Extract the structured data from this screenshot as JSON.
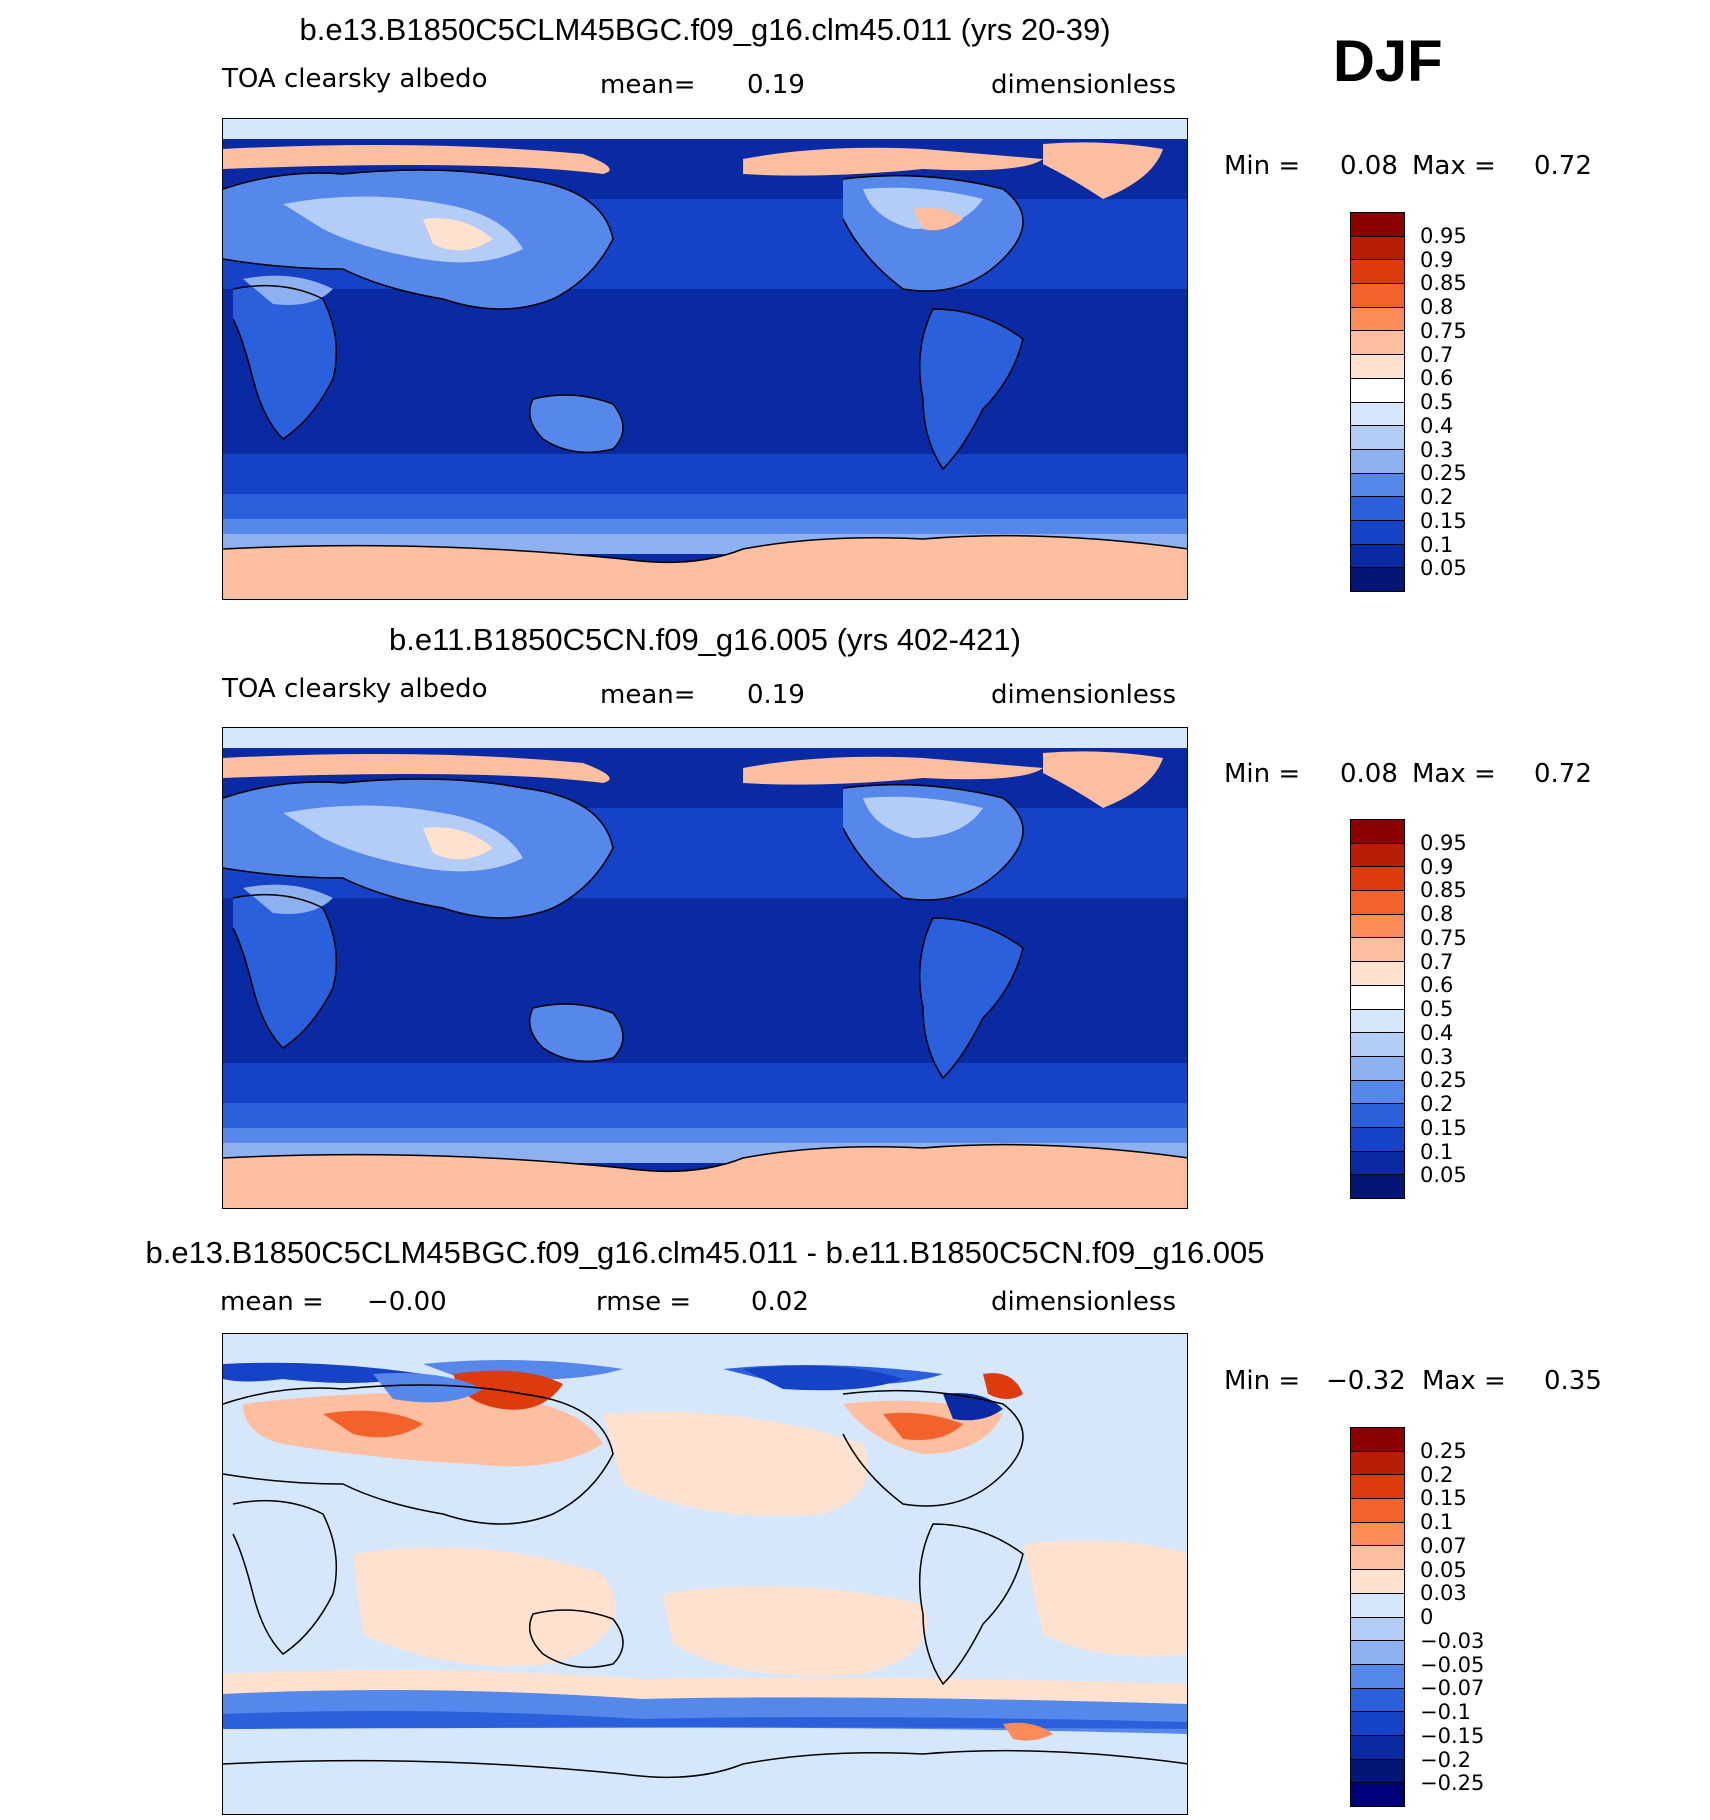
{
  "season": "DJF",
  "panels": [
    {
      "title": "b.e13.B1850C5CLM45BGC.f09_g16.clm45.011 (yrs 20-39)",
      "variable": "TOA clearsky albedo",
      "mean_label": "mean=",
      "mean_value": "0.19",
      "units": "dimensionless",
      "min_label": "Min =",
      "min_value": "0.08",
      "max_label": "Max =",
      "max_value": "0.72",
      "colorbar": {
        "labels": [
          "0.95",
          "0.9",
          "0.85",
          "0.8",
          "0.75",
          "0.7",
          "0.6",
          "0.5",
          "0.4",
          "0.3",
          "0.25",
          "0.2",
          "0.15",
          "0.1",
          "0.05"
        ],
        "colors": [
          "#8b0000",
          "#b81d05",
          "#dd3a0e",
          "#f3622a",
          "#fb8c58",
          "#fdbf9f",
          "#fee2cf",
          "#ffffff",
          "#d6e7fb",
          "#b4cdf7",
          "#8db0f1",
          "#5588ea",
          "#2a60dc",
          "#1542c6",
          "#0a2aa4",
          "#031575"
        ]
      }
    },
    {
      "title": "b.e11.B1850C5CN.f09_g16.005 (yrs 402-421)",
      "variable": "TOA clearsky albedo",
      "mean_label": "mean=",
      "mean_value": "0.19",
      "units": "dimensionless",
      "min_label": "Min =",
      "min_value": "0.08",
      "max_label": "Max =",
      "max_value": "0.72",
      "colorbar": {
        "labels": [
          "0.95",
          "0.9",
          "0.85",
          "0.8",
          "0.75",
          "0.7",
          "0.6",
          "0.5",
          "0.4",
          "0.3",
          "0.25",
          "0.2",
          "0.15",
          "0.1",
          "0.05"
        ],
        "colors": [
          "#8b0000",
          "#b81d05",
          "#dd3a0e",
          "#f3622a",
          "#fb8c58",
          "#fdbf9f",
          "#fee2cf",
          "#ffffff",
          "#d6e7fb",
          "#b4cdf7",
          "#8db0f1",
          "#5588ea",
          "#2a60dc",
          "#1542c6",
          "#0a2aa4",
          "#031575"
        ]
      }
    },
    {
      "title": "b.e13.B1850C5CLM45BGC.f09_g16.clm45.011 - b.e11.B1850C5CN.f09_g16.005",
      "mean_label": "mean =",
      "mean_value": "−0.00",
      "rmse_label": "rmse =",
      "rmse_value": "0.02",
      "units": "dimensionless",
      "min_label": "Min =",
      "min_value": "−0.32",
      "max_label": "Max =",
      "max_value": "0.35",
      "colorbar": {
        "labels": [
          "0.25",
          "0.2",
          "0.15",
          "0.1",
          "0.07",
          "0.05",
          "0.03",
          "0",
          "−0.03",
          "−0.05",
          "−0.07",
          "−0.1",
          "−0.15",
          "−0.2",
          "−0.25"
        ],
        "colors": [
          "#8b0000",
          "#b81d05",
          "#dd3a0e",
          "#f3622a",
          "#fb8c58",
          "#fdbf9f",
          "#fee2cf",
          "#d6e7fb",
          "#b4cdf7",
          "#8db0f1",
          "#5588ea",
          "#2a60dc",
          "#1542c6",
          "#0a2aa4",
          "#031575",
          "#00007a"
        ]
      }
    }
  ]
}
